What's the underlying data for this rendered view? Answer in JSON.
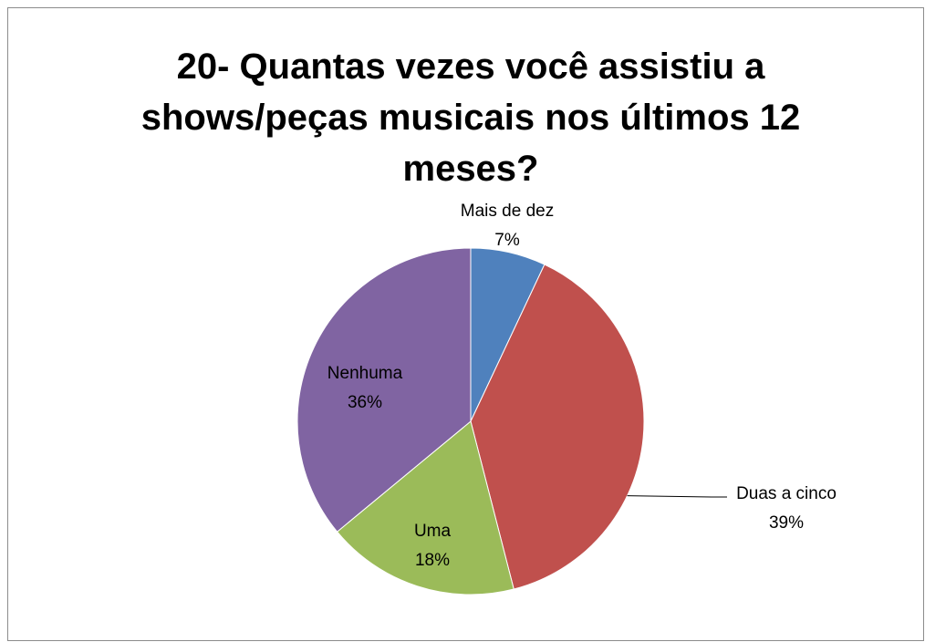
{
  "chart_data": {
    "type": "pie",
    "title": "20- Quantas vezes você assistiu a shows/peças musicais nos últimos 12 meses?",
    "categories": [
      "Mais de dez",
      "Duas a cinco",
      "Uma",
      "Nenhuma"
    ],
    "values": [
      7,
      39,
      18,
      36
    ],
    "value_labels": [
      "7%",
      "39%",
      "18%",
      "36%"
    ],
    "colors": [
      "#4f81bd",
      "#c0504d",
      "#9bbb59",
      "#8064a2"
    ]
  }
}
